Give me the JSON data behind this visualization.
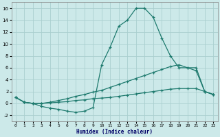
{
  "xlabel": "Humidex (Indice chaleur)",
  "xlim": [
    -0.5,
    23.5
  ],
  "ylim": [
    -3,
    17
  ],
  "yticks": [
    -2,
    0,
    2,
    4,
    6,
    8,
    10,
    12,
    14,
    16
  ],
  "xticks": [
    0,
    1,
    2,
    3,
    4,
    5,
    6,
    7,
    8,
    9,
    10,
    11,
    12,
    13,
    14,
    15,
    16,
    17,
    18,
    19,
    20,
    21,
    22,
    23
  ],
  "bg_color": "#cce9e9",
  "grid_color": "#aacfcf",
  "line_color": "#1e7a6e",
  "line1_x": [
    0,
    1,
    2,
    3,
    4,
    5,
    6,
    7,
    8,
    9,
    10,
    11,
    12,
    13,
    14,
    15,
    16,
    17,
    18,
    19,
    20,
    21,
    22,
    23
  ],
  "line1_y": [
    1.0,
    0.2,
    0.0,
    -0.5,
    -0.8,
    -1.0,
    -1.3,
    -1.5,
    -1.3,
    -0.7,
    6.5,
    9.5,
    13.0,
    14.0,
    16.0,
    16.0,
    14.5,
    11.0,
    8.0,
    6.0,
    6.0,
    6.0,
    2.0,
    1.5
  ],
  "line2_x": [
    0,
    1,
    2,
    3,
    4,
    5,
    6,
    7,
    8,
    9,
    10,
    11,
    12,
    13,
    14,
    15,
    16,
    17,
    18,
    19,
    20,
    21,
    22,
    23
  ],
  "line2_y": [
    1.0,
    0.2,
    0.0,
    0.0,
    0.2,
    0.5,
    0.8,
    1.2,
    1.5,
    1.9,
    2.2,
    2.7,
    3.2,
    3.7,
    4.2,
    4.7,
    5.2,
    5.7,
    6.2,
    6.5,
    6.0,
    5.5,
    2.0,
    1.5
  ],
  "line3_x": [
    0,
    1,
    2,
    3,
    4,
    5,
    6,
    7,
    8,
    9,
    10,
    11,
    12,
    13,
    14,
    15,
    16,
    17,
    18,
    19,
    20,
    21,
    22,
    23
  ],
  "line3_y": [
    1.0,
    0.2,
    0.0,
    0.0,
    0.1,
    0.2,
    0.3,
    0.5,
    0.6,
    0.8,
    0.9,
    1.0,
    1.2,
    1.4,
    1.6,
    1.8,
    2.0,
    2.2,
    2.4,
    2.5,
    2.5,
    2.5,
    2.0,
    1.5
  ]
}
